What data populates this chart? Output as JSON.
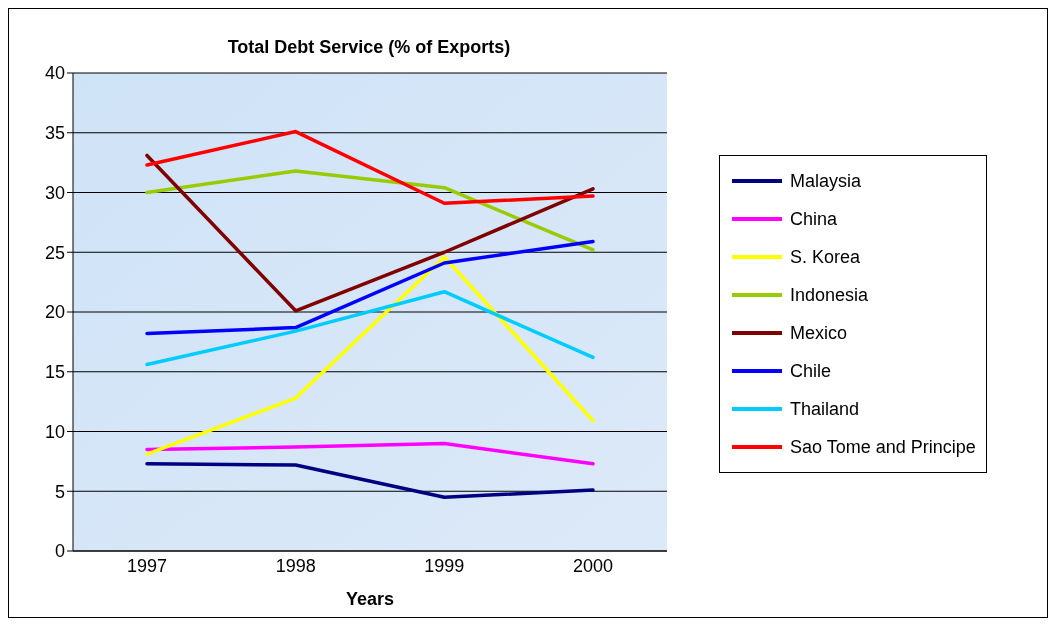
{
  "chart_data": {
    "type": "line",
    "title": "Total Debt Service (% of Exports)",
    "xlabel": "Years",
    "categories": [
      "1997",
      "1998",
      "1999",
      "2000"
    ],
    "series": [
      {
        "name": "Malaysia",
        "color": "#000080",
        "values": [
          7.3,
          7.2,
          4.5,
          5.1
        ]
      },
      {
        "name": "China",
        "color": "#ff00ff",
        "values": [
          8.5,
          8.7,
          9.0,
          7.3
        ]
      },
      {
        "name": "S. Korea",
        "color": "#ffff00",
        "values": [
          8.1,
          12.8,
          24.6,
          10.9
        ]
      },
      {
        "name": "Indonesia",
        "color": "#99cc00",
        "values": [
          30.0,
          31.8,
          30.4,
          25.2
        ]
      },
      {
        "name": "Mexico",
        "color": "#800000",
        "values": [
          33.1,
          20.1,
          25.0,
          30.3
        ]
      },
      {
        "name": "Chile",
        "color": "#0000ff",
        "values": [
          18.2,
          18.7,
          24.1,
          25.9
        ]
      },
      {
        "name": "Thailand",
        "color": "#00ccff",
        "values": [
          15.6,
          18.4,
          21.7,
          16.2
        ]
      },
      {
        "name": "Sao Tome and Principe",
        "color": "#ff0000",
        "values": [
          32.3,
          35.1,
          29.1,
          29.7
        ]
      }
    ],
    "ylim": [
      0,
      40
    ],
    "yticks": [
      0,
      5,
      10,
      15,
      20,
      25,
      30,
      35,
      40
    ],
    "grid": "y",
    "legend": "right",
    "marker": "none",
    "line_style": "solid"
  }
}
